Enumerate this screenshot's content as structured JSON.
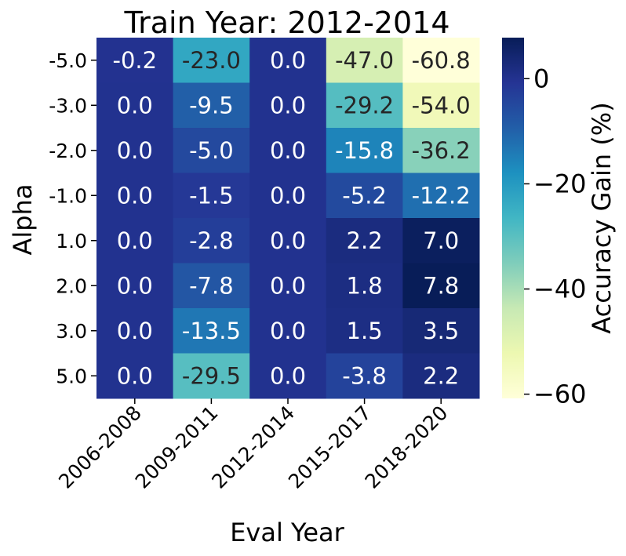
{
  "chart_data": {
    "type": "heatmap",
    "title": "Train Year: 2012-2014",
    "xlabel": "Eval Year",
    "ylabel": "Alpha",
    "x_categories": [
      "2006-2008",
      "2009-2011",
      "2012-2014",
      "2015-2017",
      "2018-2020"
    ],
    "y_categories": [
      "-5.0",
      "-3.0",
      "-2.0",
      "-1.0",
      "1.0",
      "2.0",
      "3.0",
      "5.0"
    ],
    "values": [
      [
        -0.2,
        -23.0,
        0.0,
        -47.0,
        -60.8
      ],
      [
        0.0,
        -9.5,
        0.0,
        -29.2,
        -54.0
      ],
      [
        0.0,
        -5.0,
        0.0,
        -15.8,
        -36.2
      ],
      [
        0.0,
        -1.5,
        0.0,
        -5.2,
        -12.2
      ],
      [
        0.0,
        -2.8,
        0.0,
        2.2,
        7.0
      ],
      [
        0.0,
        -7.8,
        0.0,
        1.8,
        7.8
      ],
      [
        0.0,
        -13.5,
        0.0,
        1.5,
        3.5
      ],
      [
        0.0,
        -29.5,
        0.0,
        -3.8,
        2.2
      ]
    ],
    "colorbar": {
      "label": "Accuracy Gain (%)",
      "vmin": -60.8,
      "vmax": 7.8,
      "ticks": [
        0,
        -20,
        -40,
        -60
      ],
      "tick_labels": [
        "0",
        "−20",
        "−40",
        "−60"
      ],
      "colormap": "YlGnBu"
    }
  }
}
